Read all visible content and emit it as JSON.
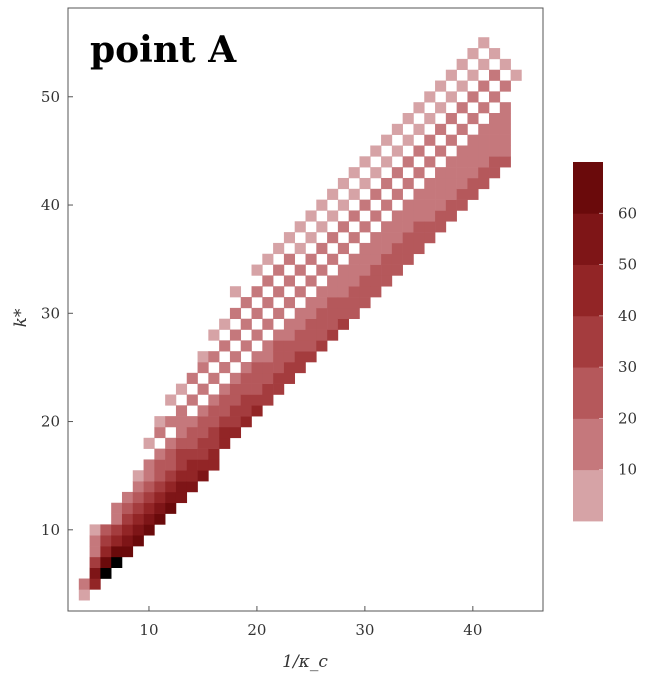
{
  "chart_data": {
    "type": "heatmap",
    "title": "point A",
    "xlabel": "1/κ_c",
    "ylabel": "k*",
    "xlim": [
      2.5,
      46.5
    ],
    "ylim": [
      2.5,
      58.2
    ],
    "xticks": [
      10,
      20,
      30,
      40
    ],
    "yticks": [
      10,
      20,
      30,
      40,
      50
    ],
    "bin_width": 1.0,
    "colorbar": {
      "ticks": [
        10,
        20,
        30,
        40,
        50,
        60
      ],
      "range": [
        0,
        70
      ],
      "bands": [
        {
          "from": 0,
          "to": 10,
          "color": "#d6a3a6"
        },
        {
          "from": 10,
          "to": 20,
          "color": "#c5787c"
        },
        {
          "from": 20,
          "to": 30,
          "color": "#b5585b"
        },
        {
          "from": 30,
          "to": 40,
          "color": "#a43c3e"
        },
        {
          "from": 40,
          "to": 50,
          "color": "#922526"
        },
        {
          "from": 50,
          "to": 60,
          "color": "#7e1517"
        },
        {
          "from": 60,
          "to": 70,
          "color": "#6a0a0b"
        }
      ]
    },
    "cells": [
      [
        4,
        4,
        5
      ],
      [
        4,
        5,
        15
      ],
      [
        5,
        5,
        40
      ],
      [
        5,
        6,
        55
      ],
      [
        5,
        7,
        30
      ],
      [
        5,
        8,
        15
      ],
      [
        5,
        9,
        10
      ],
      [
        5,
        10,
        8
      ],
      [
        6,
        6,
        70
      ],
      [
        6,
        7,
        60
      ],
      [
        6,
        8,
        45
      ],
      [
        6,
        9,
        30
      ],
      [
        6,
        10,
        20
      ],
      [
        7,
        7,
        72
      ],
      [
        7,
        8,
        60
      ],
      [
        7,
        9,
        40
      ],
      [
        7,
        10,
        30
      ],
      [
        7,
        11,
        15
      ],
      [
        7,
        12,
        10
      ],
      [
        8,
        8,
        65
      ],
      [
        8,
        9,
        55
      ],
      [
        8,
        10,
        45
      ],
      [
        8,
        11,
        35
      ],
      [
        8,
        12,
        25
      ],
      [
        8,
        13,
        12
      ],
      [
        9,
        9,
        62
      ],
      [
        9,
        10,
        50
      ],
      [
        9,
        11,
        40
      ],
      [
        9,
        12,
        30
      ],
      [
        9,
        13,
        20
      ],
      [
        9,
        14,
        10
      ],
      [
        9,
        15,
        8
      ],
      [
        10,
        10,
        68
      ],
      [
        10,
        11,
        55
      ],
      [
        10,
        12,
        45
      ],
      [
        10,
        13,
        38
      ],
      [
        10,
        14,
        28
      ],
      [
        10,
        15,
        18
      ],
      [
        10,
        16,
        12
      ],
      [
        10,
        18,
        8
      ],
      [
        11,
        11,
        64
      ],
      [
        11,
        12,
        55
      ],
      [
        11,
        13,
        45
      ],
      [
        11,
        14,
        35
      ],
      [
        11,
        15,
        28
      ],
      [
        11,
        16,
        20
      ],
      [
        11,
        17,
        15
      ],
      [
        11,
        19,
        10
      ],
      [
        11,
        20,
        8
      ],
      [
        12,
        12,
        60
      ],
      [
        12,
        13,
        52
      ],
      [
        12,
        14,
        45
      ],
      [
        12,
        15,
        36
      ],
      [
        12,
        16,
        28
      ],
      [
        12,
        17,
        22
      ],
      [
        12,
        18,
        15
      ],
      [
        12,
        20,
        12
      ],
      [
        12,
        22,
        8
      ],
      [
        13,
        13,
        58
      ],
      [
        13,
        14,
        52
      ],
      [
        13,
        15,
        44
      ],
      [
        13,
        16,
        38
      ],
      [
        13,
        17,
        30
      ],
      [
        13,
        18,
        24
      ],
      [
        13,
        19,
        18
      ],
      [
        13,
        20,
        14
      ],
      [
        13,
        21,
        10
      ],
      [
        13,
        23,
        8
      ],
      [
        14,
        14,
        55
      ],
      [
        14,
        15,
        48
      ],
      [
        14,
        16,
        40
      ],
      [
        14,
        17,
        35
      ],
      [
        14,
        18,
        28
      ],
      [
        14,
        19,
        22
      ],
      [
        14,
        20,
        18
      ],
      [
        14,
        22,
        12
      ],
      [
        14,
        24,
        10
      ],
      [
        15,
        15,
        50
      ],
      [
        15,
        16,
        44
      ],
      [
        15,
        17,
        38
      ],
      [
        15,
        18,
        32
      ],
      [
        15,
        19,
        26
      ],
      [
        15,
        20,
        20
      ],
      [
        15,
        21,
        16
      ],
      [
        15,
        23,
        12
      ],
      [
        15,
        25,
        10
      ],
      [
        15,
        26,
        8
      ],
      [
        16,
        16,
        48
      ],
      [
        16,
        17,
        42
      ],
      [
        16,
        18,
        36
      ],
      [
        16,
        19,
        30
      ],
      [
        16,
        20,
        26
      ],
      [
        16,
        21,
        20
      ],
      [
        16,
        22,
        16
      ],
      [
        16,
        24,
        12
      ],
      [
        16,
        26,
        10
      ],
      [
        16,
        28,
        8
      ],
      [
        17,
        18,
        45
      ],
      [
        17,
        19,
        40
      ],
      [
        17,
        20,
        34
      ],
      [
        17,
        21,
        28
      ],
      [
        17,
        22,
        22
      ],
      [
        17,
        23,
        18
      ],
      [
        17,
        25,
        14
      ],
      [
        17,
        27,
        10
      ],
      [
        17,
        29,
        8
      ],
      [
        18,
        19,
        44
      ],
      [
        18,
        20,
        38
      ],
      [
        18,
        21,
        32
      ],
      [
        18,
        22,
        26
      ],
      [
        18,
        23,
        22
      ],
      [
        18,
        24,
        18
      ],
      [
        18,
        26,
        14
      ],
      [
        18,
        28,
        12
      ],
      [
        18,
        30,
        10
      ],
      [
        18,
        32,
        8
      ],
      [
        19,
        20,
        42
      ],
      [
        19,
        21,
        36
      ],
      [
        19,
        22,
        30
      ],
      [
        19,
        23,
        26
      ],
      [
        19,
        24,
        22
      ],
      [
        19,
        25,
        18
      ],
      [
        19,
        27,
        14
      ],
      [
        19,
        29,
        12
      ],
      [
        19,
        31,
        10
      ],
      [
        20,
        21,
        40
      ],
      [
        20,
        22,
        34
      ],
      [
        20,
        23,
        28
      ],
      [
        20,
        24,
        24
      ],
      [
        20,
        25,
        20
      ],
      [
        20,
        26,
        16
      ],
      [
        20,
        28,
        14
      ],
      [
        20,
        30,
        12
      ],
      [
        20,
        32,
        10
      ],
      [
        20,
        34,
        8
      ],
      [
        21,
        22,
        38
      ],
      [
        21,
        23,
        33
      ],
      [
        21,
        24,
        27
      ],
      [
        21,
        25,
        23
      ],
      [
        21,
        26,
        19
      ],
      [
        21,
        27,
        16
      ],
      [
        21,
        29,
        14
      ],
      [
        21,
        31,
        12
      ],
      [
        21,
        33,
        10
      ],
      [
        21,
        35,
        8
      ],
      [
        22,
        23,
        36
      ],
      [
        22,
        24,
        32
      ],
      [
        22,
        25,
        27
      ],
      [
        22,
        26,
        24
      ],
      [
        22,
        27,
        20
      ],
      [
        22,
        28,
        16
      ],
      [
        22,
        30,
        13
      ],
      [
        22,
        32,
        12
      ],
      [
        22,
        34,
        10
      ],
      [
        22,
        36,
        8
      ],
      [
        23,
        24,
        35
      ],
      [
        23,
        25,
        30
      ],
      [
        23,
        26,
        26
      ],
      [
        23,
        27,
        22
      ],
      [
        23,
        28,
        18
      ],
      [
        23,
        29,
        16
      ],
      [
        23,
        31,
        13
      ],
      [
        23,
        33,
        11
      ],
      [
        23,
        35,
        10
      ],
      [
        23,
        37,
        8
      ],
      [
        24,
        25,
        34
      ],
      [
        24,
        26,
        30
      ],
      [
        24,
        27,
        25
      ],
      [
        24,
        28,
        22
      ],
      [
        24,
        29,
        18
      ],
      [
        24,
        30,
        15
      ],
      [
        24,
        32,
        12
      ],
      [
        24,
        34,
        11
      ],
      [
        24,
        36,
        9
      ],
      [
        24,
        38,
        8
      ],
      [
        25,
        26,
        33
      ],
      [
        25,
        27,
        28
      ],
      [
        25,
        28,
        25
      ],
      [
        25,
        29,
        21
      ],
      [
        25,
        30,
        18
      ],
      [
        25,
        31,
        15
      ],
      [
        25,
        33,
        13
      ],
      [
        25,
        35,
        11
      ],
      [
        25,
        37,
        9
      ],
      [
        25,
        39,
        8
      ],
      [
        26,
        27,
        32
      ],
      [
        26,
        28,
        28
      ],
      [
        26,
        29,
        24
      ],
      [
        26,
        30,
        20
      ],
      [
        26,
        31,
        18
      ],
      [
        26,
        32,
        15
      ],
      [
        26,
        34,
        13
      ],
      [
        26,
        36,
        11
      ],
      [
        26,
        38,
        9
      ],
      [
        26,
        40,
        8
      ],
      [
        27,
        28,
        30
      ],
      [
        27,
        29,
        27
      ],
      [
        27,
        30,
        23
      ],
      [
        27,
        31,
        20
      ],
      [
        27,
        32,
        17
      ],
      [
        27,
        33,
        15
      ],
      [
        27,
        35,
        13
      ],
      [
        27,
        37,
        11
      ],
      [
        27,
        39,
        9
      ],
      [
        27,
        41,
        8
      ],
      [
        28,
        29,
        30
      ],
      [
        28,
        30,
        26
      ],
      [
        28,
        31,
        22
      ],
      [
        28,
        32,
        19
      ],
      [
        28,
        33,
        17
      ],
      [
        28,
        34,
        15
      ],
      [
        28,
        36,
        12
      ],
      [
        28,
        38,
        10
      ],
      [
        28,
        40,
        9
      ],
      [
        28,
        42,
        8
      ],
      [
        29,
        30,
        29
      ],
      [
        29,
        31,
        26
      ],
      [
        29,
        32,
        22
      ],
      [
        29,
        33,
        19
      ],
      [
        29,
        34,
        17
      ],
      [
        29,
        35,
        14
      ],
      [
        29,
        37,
        12
      ],
      [
        29,
        39,
        10
      ],
      [
        29,
        41,
        9
      ],
      [
        29,
        43,
        8
      ],
      [
        30,
        31,
        28
      ],
      [
        30,
        32,
        25
      ],
      [
        30,
        33,
        22
      ],
      [
        30,
        34,
        19
      ],
      [
        30,
        35,
        16
      ],
      [
        30,
        36,
        14
      ],
      [
        30,
        38,
        12
      ],
      [
        30,
        40,
        10
      ],
      [
        30,
        42,
        9
      ],
      [
        30,
        44,
        8
      ],
      [
        31,
        32,
        28
      ],
      [
        31,
        33,
        24
      ],
      [
        31,
        34,
        21
      ],
      [
        31,
        35,
        18
      ],
      [
        31,
        36,
        16
      ],
      [
        31,
        37,
        14
      ],
      [
        31,
        39,
        12
      ],
      [
        31,
        41,
        10
      ],
      [
        31,
        43,
        9
      ],
      [
        31,
        45,
        8
      ],
      [
        32,
        33,
        27
      ],
      [
        32,
        34,
        24
      ],
      [
        32,
        35,
        21
      ],
      [
        32,
        36,
        18
      ],
      [
        32,
        37,
        16
      ],
      [
        32,
        38,
        14
      ],
      [
        32,
        40,
        12
      ],
      [
        32,
        42,
        10
      ],
      [
        32,
        44,
        9
      ],
      [
        32,
        46,
        8
      ],
      [
        33,
        34,
        26
      ],
      [
        33,
        35,
        23
      ],
      [
        33,
        36,
        20
      ],
      [
        33,
        37,
        18
      ],
      [
        33,
        38,
        16
      ],
      [
        33,
        39,
        14
      ],
      [
        33,
        41,
        12
      ],
      [
        33,
        43,
        10
      ],
      [
        33,
        45,
        9
      ],
      [
        33,
        47,
        8
      ],
      [
        34,
        35,
        26
      ],
      [
        34,
        36,
        23
      ],
      [
        34,
        37,
        20
      ],
      [
        34,
        38,
        18
      ],
      [
        34,
        39,
        16
      ],
      [
        34,
        40,
        14
      ],
      [
        34,
        42,
        12
      ],
      [
        34,
        44,
        10
      ],
      [
        34,
        46,
        9
      ],
      [
        34,
        48,
        8
      ],
      [
        35,
        36,
        25
      ],
      [
        35,
        37,
        22
      ],
      [
        35,
        38,
        20
      ],
      [
        35,
        39,
        17
      ],
      [
        35,
        40,
        15
      ],
      [
        35,
        41,
        14
      ],
      [
        35,
        43,
        12
      ],
      [
        35,
        45,
        10
      ],
      [
        35,
        47,
        9
      ],
      [
        35,
        49,
        8
      ],
      [
        36,
        37,
        25
      ],
      [
        36,
        38,
        22
      ],
      [
        36,
        39,
        19
      ],
      [
        36,
        40,
        17
      ],
      [
        36,
        41,
        15
      ],
      [
        36,
        42,
        13
      ],
      [
        36,
        44,
        11
      ],
      [
        36,
        46,
        10
      ],
      [
        36,
        48,
        9
      ],
      [
        36,
        50,
        8
      ],
      [
        37,
        38,
        24
      ],
      [
        37,
        39,
        21
      ],
      [
        37,
        40,
        19
      ],
      [
        37,
        41,
        17
      ],
      [
        37,
        42,
        15
      ],
      [
        37,
        43,
        13
      ],
      [
        37,
        45,
        11
      ],
      [
        37,
        47,
        10
      ],
      [
        37,
        49,
        9
      ],
      [
        37,
        51,
        8
      ],
      [
        38,
        39,
        24
      ],
      [
        38,
        40,
        21
      ],
      [
        38,
        41,
        19
      ],
      [
        38,
        42,
        16
      ],
      [
        38,
        43,
        15
      ],
      [
        38,
        44,
        13
      ],
      [
        38,
        46,
        11
      ],
      [
        38,
        48,
        10
      ],
      [
        38,
        50,
        9
      ],
      [
        38,
        52,
        8
      ],
      [
        39,
        40,
        23
      ],
      [
        39,
        41,
        21
      ],
      [
        39,
        42,
        18
      ],
      [
        39,
        43,
        16
      ],
      [
        39,
        44,
        14
      ],
      [
        39,
        45,
        13
      ],
      [
        39,
        47,
        11
      ],
      [
        39,
        49,
        10
      ],
      [
        39,
        51,
        9
      ],
      [
        39,
        53,
        8
      ],
      [
        40,
        41,
        23
      ],
      [
        40,
        42,
        20
      ],
      [
        40,
        43,
        18
      ],
      [
        40,
        44,
        16
      ],
      [
        40,
        45,
        14
      ],
      [
        40,
        46,
        13
      ],
      [
        40,
        48,
        11
      ],
      [
        40,
        50,
        10
      ],
      [
        40,
        52,
        9
      ],
      [
        40,
        54,
        8
      ],
      [
        41,
        42,
        22
      ],
      [
        41,
        43,
        20
      ],
      [
        41,
        44,
        18
      ],
      [
        41,
        45,
        16
      ],
      [
        41,
        46,
        14
      ],
      [
        41,
        47,
        12
      ],
      [
        41,
        49,
        11
      ],
      [
        41,
        51,
        10
      ],
      [
        41,
        53,
        9
      ],
      [
        41,
        55,
        8
      ],
      [
        42,
        43,
        22
      ],
      [
        42,
        44,
        20
      ],
      [
        42,
        45,
        17
      ],
      [
        42,
        46,
        15
      ],
      [
        42,
        47,
        14
      ],
      [
        42,
        48,
        12
      ],
      [
        42,
        50,
        11
      ],
      [
        42,
        52,
        10
      ],
      [
        42,
        54,
        9
      ],
      [
        43,
        44,
        21
      ],
      [
        43,
        45,
        19
      ],
      [
        43,
        46,
        17
      ],
      [
        43,
        47,
        15
      ],
      [
        43,
        48,
        14
      ],
      [
        43,
        49,
        12
      ],
      [
        43,
        51,
        10
      ],
      [
        43,
        53,
        9
      ],
      [
        44,
        52,
        8
      ]
    ]
  }
}
